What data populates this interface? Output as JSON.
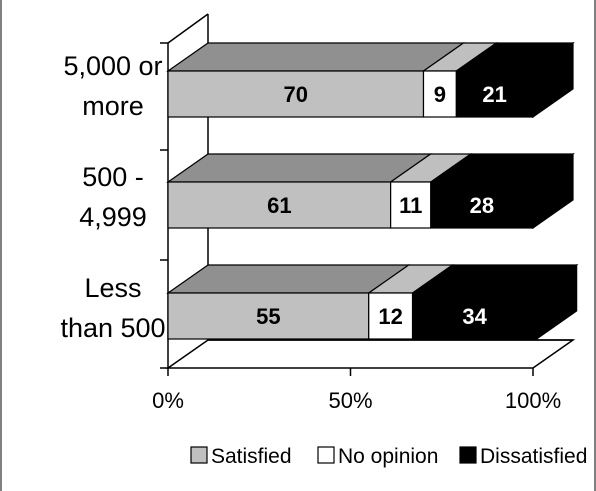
{
  "chart_data": {
    "type": "bar",
    "orientation": "horizontal",
    "stacked": "percent",
    "three_d": true,
    "categories": [
      "Less than 500",
      "500 - 4,999",
      "5,000 or more"
    ],
    "category_lines": [
      [
        "Less",
        "than 500"
      ],
      [
        "500 -",
        "4,999"
      ],
      [
        "5,000 or",
        "more"
      ]
    ],
    "series": [
      {
        "name": "Satisfied",
        "values": [
          55,
          61,
          70
        ],
        "color": "#c0c0c0",
        "label_color": "#000000"
      },
      {
        "name": "No opinion",
        "values": [
          12,
          11,
          9
        ],
        "color": "#ffffff",
        "label_color": "#000000"
      },
      {
        "name": "Dissatisfied",
        "values": [
          34,
          28,
          21
        ],
        "color": "#000000",
        "label_color": "#ffffff"
      }
    ],
    "x_ticks": [
      "0%",
      "50%",
      "100%"
    ],
    "xlim": [
      0,
      100
    ],
    "legend": {
      "position": "bottom"
    },
    "grid": false
  }
}
